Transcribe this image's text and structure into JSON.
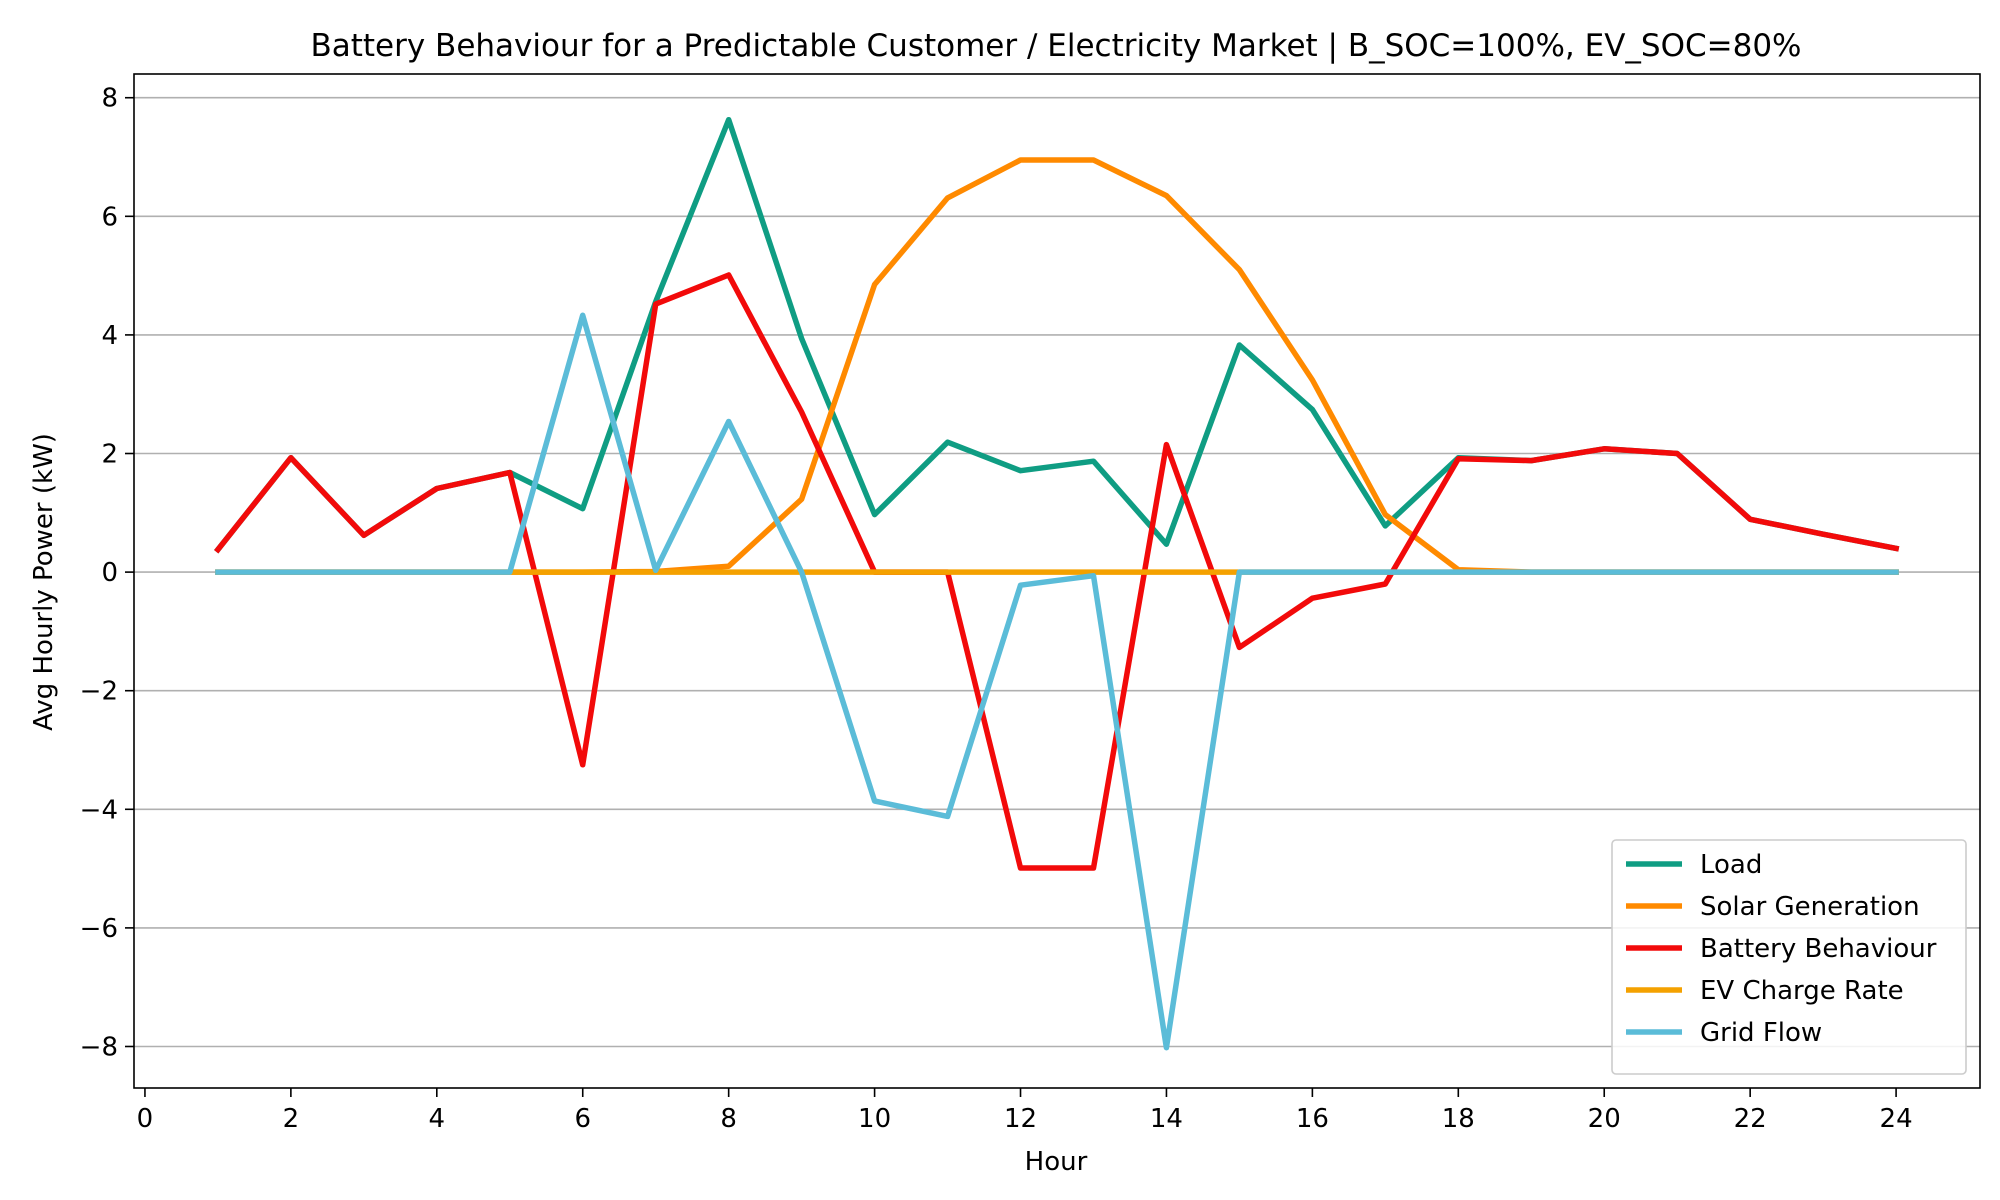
{
  "chart_data": {
    "type": "line",
    "title": "Battery Behaviour for a Predictable Customer / Electricity Market | B_SOC=100%, EV_SOC=80%",
    "xlabel": "Hour",
    "ylabel": "Avg Hourly Power (kW)",
    "xlim": [
      -0.15,
      25.15
    ],
    "ylim": [
      -8.7,
      8.4
    ],
    "xticks": [
      0,
      2,
      4,
      6,
      8,
      10,
      12,
      14,
      16,
      18,
      20,
      22,
      24
    ],
    "yticks": [
      -8,
      -6,
      -4,
      -2,
      0,
      2,
      4,
      6,
      8
    ],
    "grid": "horizontal",
    "legend_position": "bottom-right",
    "x": [
      1,
      2,
      3,
      4,
      5,
      6,
      7,
      8,
      9,
      10,
      11,
      12,
      13,
      14,
      15,
      16,
      17,
      18,
      19,
      20,
      21,
      22,
      23,
      24
    ],
    "series": [
      {
        "name": "Load",
        "color": "#0f9d83",
        "values": [
          0.38,
          1.93,
          0.62,
          1.41,
          1.68,
          1.07,
          4.56,
          7.63,
          3.94,
          0.97,
          2.19,
          1.71,
          1.87,
          0.47,
          3.83,
          2.74,
          0.78,
          1.93,
          1.88,
          2.08,
          2.0,
          0.89,
          0.64,
          0.4
        ]
      },
      {
        "name": "Solar Generation",
        "color": "#ff8a00",
        "values": [
          0,
          0,
          0,
          0,
          0,
          0,
          0.01,
          0.1,
          1.23,
          4.85,
          6.31,
          6.95,
          6.95,
          6.35,
          5.1,
          3.24,
          0.97,
          0.04,
          0,
          0,
          0,
          0,
          0,
          0
        ]
      },
      {
        "name": "Battery Behaviour",
        "color": "#f20a0a",
        "values": [
          0.38,
          1.93,
          0.62,
          1.41,
          1.68,
          -3.25,
          4.52,
          5.01,
          2.7,
          0,
          0,
          -4.99,
          -4.99,
          2.15,
          -1.27,
          -0.44,
          -0.2,
          1.91,
          1.88,
          2.08,
          2.0,
          0.89,
          0.64,
          0.4
        ]
      },
      {
        "name": "EV Charge Rate",
        "color": "#f4a100",
        "values": [
          0,
          0,
          0,
          0,
          0,
          0,
          0,
          0,
          0,
          0,
          0,
          0,
          0,
          0,
          0,
          0,
          0,
          0,
          0,
          0,
          0,
          0,
          0,
          0
        ]
      },
      {
        "name": "Grid Flow",
        "color": "#5bbcd8",
        "values": [
          0,
          0,
          0,
          0,
          0,
          4.33,
          0.03,
          2.54,
          0,
          -3.86,
          -4.12,
          -0.22,
          -0.06,
          -8.02,
          0,
          0,
          0,
          0,
          0,
          0,
          0,
          0,
          0,
          0
        ]
      }
    ]
  }
}
